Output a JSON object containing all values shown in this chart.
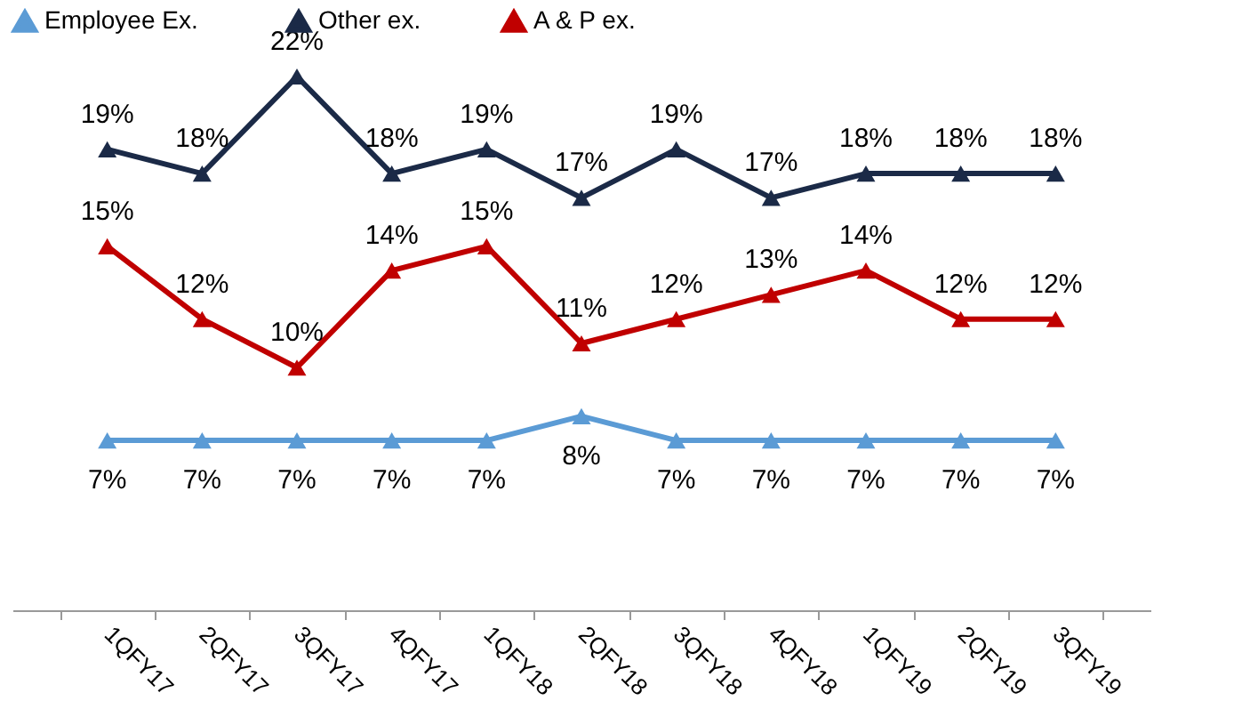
{
  "chart_data": {
    "type": "line",
    "categories": [
      "1QFY17",
      "2QFY17",
      "3QFY17",
      "4QFY17",
      "1QFY18",
      "2QFY18",
      "3QFY18",
      "4QFY18",
      "1QFY19",
      "2QFY19",
      "3QFY19"
    ],
    "series": [
      {
        "name": "Employee  Ex.",
        "color": "#5b9bd5",
        "values": [
          7,
          7,
          7,
          7,
          7,
          8,
          7,
          7,
          7,
          7,
          7
        ],
        "value_labels": [
          "7%",
          "7%",
          "7%",
          "7%",
          "7%",
          "8%",
          "7%",
          "7%",
          "7%",
          "7%",
          "7%"
        ]
      },
      {
        "name": "Other ex.",
        "color": "#1b2a47",
        "values": [
          19,
          18,
          22,
          18,
          19,
          17,
          19,
          17,
          18,
          18,
          18
        ],
        "value_labels": [
          "19%",
          "18%",
          "22%",
          "18%",
          "19%",
          "17%",
          "19%",
          "17%",
          "18%",
          "18%",
          "18%"
        ]
      },
      {
        "name": "A & P ex.",
        "color": "#c00000",
        "values": [
          15,
          12,
          10,
          14,
          15,
          11,
          12,
          13,
          14,
          12,
          12
        ],
        "value_labels": [
          "15%",
          "12%",
          "10%",
          "14%",
          "15%",
          "11%",
          "12%",
          "13%",
          "14%",
          "12%",
          "12%"
        ]
      }
    ],
    "marker": "triangle",
    "legend": "top",
    "grid": false
  }
}
